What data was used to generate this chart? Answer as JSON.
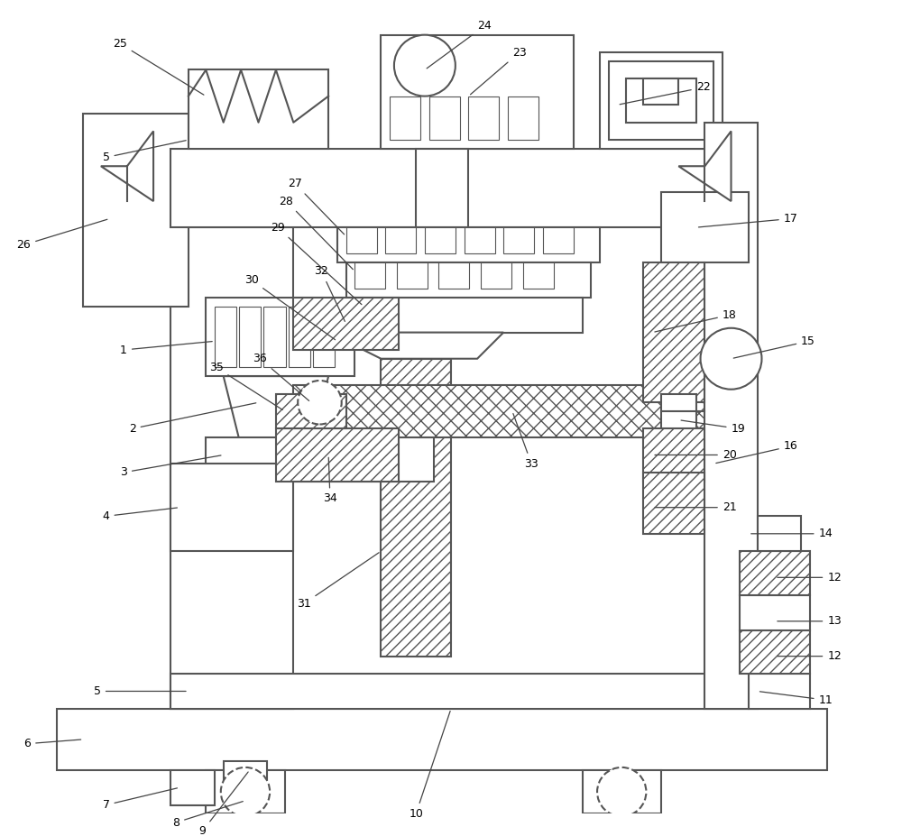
{
  "line_color": "#555555",
  "lw": 1.5,
  "fig_width": 10.0,
  "fig_height": 9.27
}
